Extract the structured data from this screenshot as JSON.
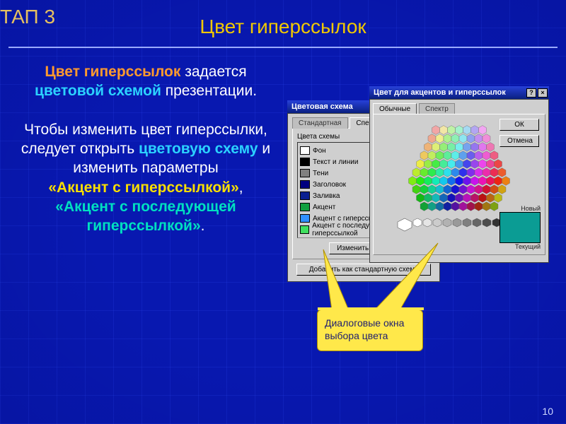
{
  "stage_label": "ТАП 3",
  "title": "Цвет гиперссылок",
  "page_number": "10",
  "body": {
    "line1a": "Цвет гиперссылок",
    "line1b": "задается",
    "line1c": "цветовой схемой",
    "line1d": "презентации.",
    "line2a": "Чтобы изменить цвет гиперссылки, следует открыть",
    "line2b": "цветовую схему",
    "line2c": "и изменить параметры",
    "line2d": "«Акцент с гиперссылкой»",
    "comma": ",",
    "line2e": "«Акцент с последующей гиперссылкой»",
    "period": "."
  },
  "callout_text": "Диалоговые окна выбора цвета",
  "scheme_dialog": {
    "title": "Цветовая схема",
    "tabs": {
      "standard": "Стандартная",
      "custom": "Специальная"
    },
    "group_label": "Цвета схемы",
    "items": [
      {
        "label": "Фон",
        "color": "#ffffff"
      },
      {
        "label": "Текст и линии",
        "color": "#000000"
      },
      {
        "label": "Тени",
        "color": "#808080"
      },
      {
        "label": "Заголовок",
        "color": "#000080"
      },
      {
        "label": "Заливка",
        "color": "#0a2090"
      },
      {
        "label": "Акцент",
        "color": "#10a040"
      },
      {
        "label": "Акцент с гиперссылкой",
        "color": "#3090ff"
      },
      {
        "label": "Акцент с последующей гиперссылкой",
        "color": "#40e060"
      }
    ],
    "change_btn": "Изменить цвет...",
    "add_btn": "Добавить как стандартную схему"
  },
  "picker_dialog": {
    "title": "Цвет для акцентов и гиперссылок",
    "tabs": {
      "normal": "Обычные",
      "spectrum": "Спектр"
    },
    "ok": "ОК",
    "cancel": "Отмена",
    "new_label": "Новый",
    "current_label": "Текущий",
    "new_color": "#0b9c94",
    "cur_color": "#0b9c94"
  },
  "colors": {
    "callout_bg": "#ffe84a",
    "slide_bg": "#0818b0",
    "emph": "#ff9a2e",
    "link": "#2bd2ff",
    "yellow": "#f8de00",
    "cyan": "#00e0c0"
  }
}
